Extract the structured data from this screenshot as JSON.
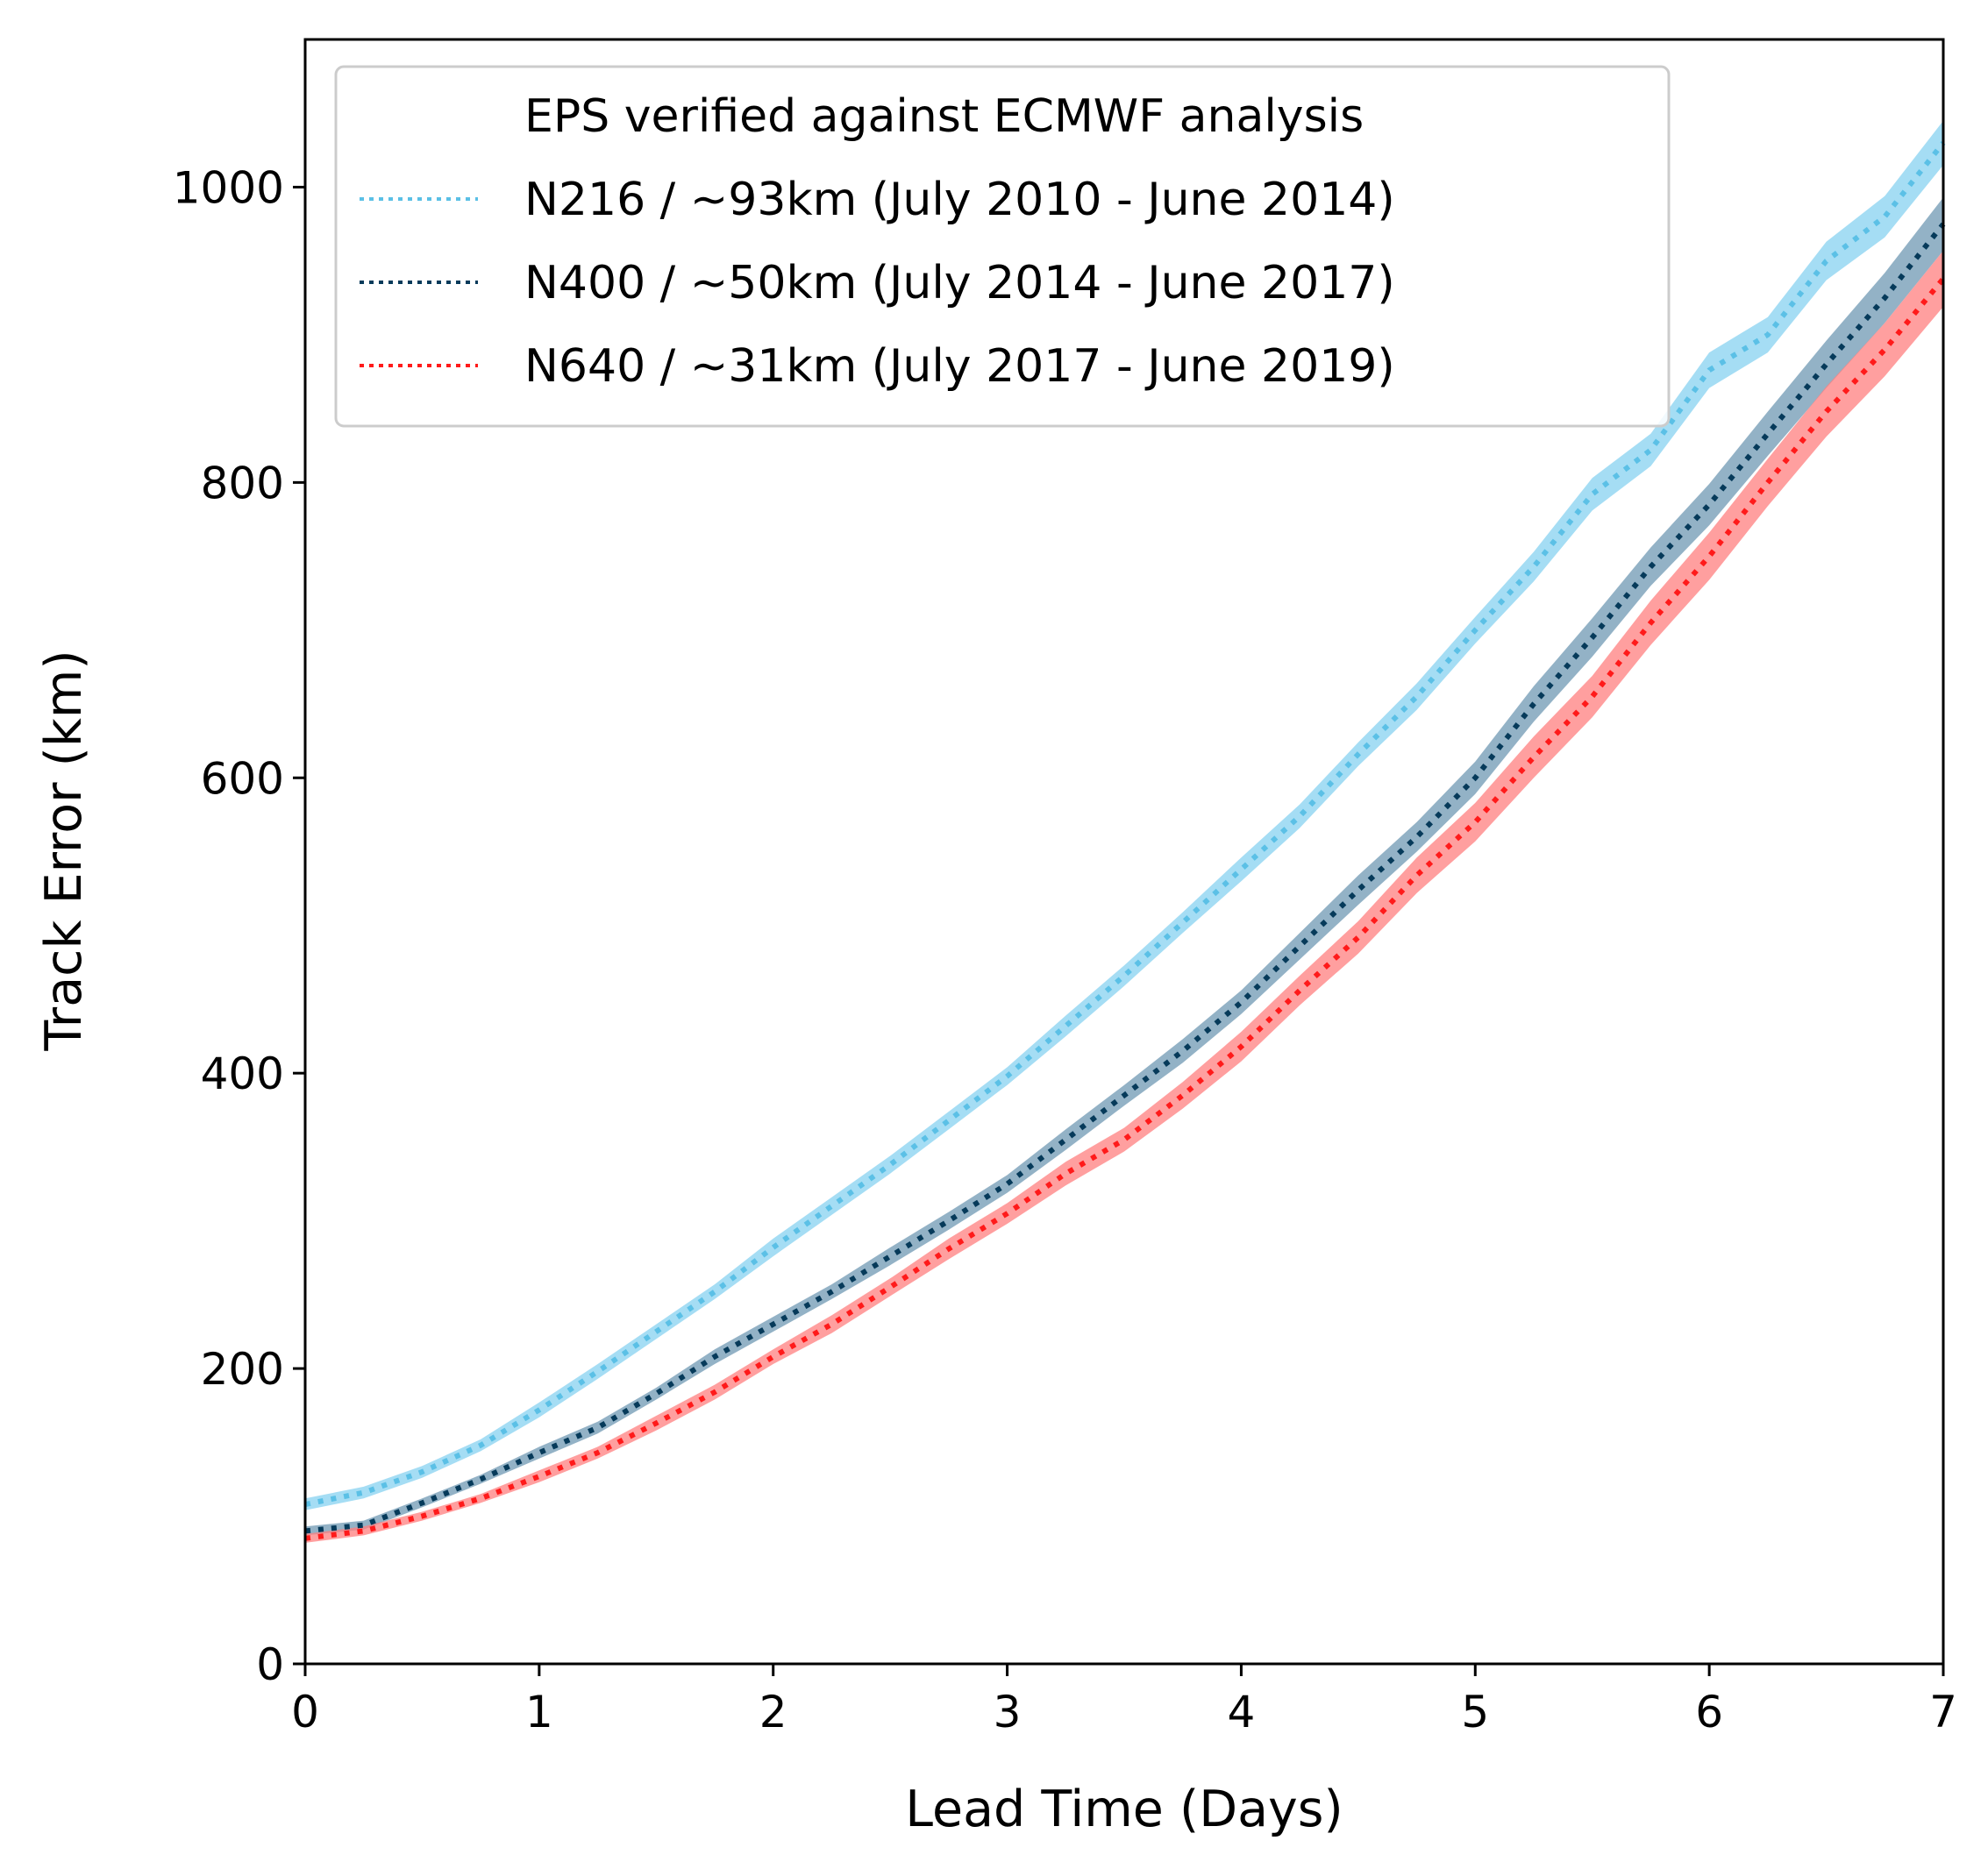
{
  "chart_data": {
    "type": "line",
    "xlabel": "Lead Time (Days)",
    "ylabel": "Track Error (km)",
    "xlim": [
      0,
      7
    ],
    "ylim": [
      0,
      1100
    ],
    "xticks": [
      0,
      1,
      2,
      3,
      4,
      5,
      6,
      7
    ],
    "yticks": [
      0,
      200,
      400,
      600,
      800,
      1000
    ],
    "grid": false,
    "legend_position": "upper-left",
    "legend_title": "EPS verified against ECMWF analysis",
    "x": [
      0,
      0.25,
      0.5,
      0.75,
      1,
      1.25,
      1.5,
      1.75,
      2,
      2.25,
      2.5,
      2.75,
      3,
      3.25,
      3.5,
      3.75,
      4,
      4.25,
      4.5,
      4.75,
      5,
      5.25,
      5.5,
      5.75,
      6,
      6.25,
      6.5,
      6.75,
      7
    ],
    "series": [
      {
        "name": "N216 / ~93km (July 2010 - June 2014)",
        "color": "#5bc0e6",
        "band_color": "#87d2f0",
        "style": "dotted",
        "values": [
          108,
          116,
          130,
          148,
          172,
          198,
          225,
          252,
          282,
          310,
          338,
          368,
          398,
          432,
          466,
          502,
          538,
          574,
          616,
          655,
          700,
          743,
          792,
          822,
          876,
          900,
          950,
          980,
          1030
        ],
        "band_halfwidth": [
          4,
          4,
          4,
          4,
          5,
          5,
          5,
          5,
          6,
          6,
          6,
          6,
          6,
          7,
          7,
          7,
          8,
          8,
          8,
          9,
          9,
          10,
          11,
          11,
          12,
          12,
          13,
          14,
          15
        ]
      },
      {
        "name": "N400 / ~50km (July 2014 - June 2017)",
        "color": "#063a5a",
        "band_color": "#6f98b3",
        "style": "dotted",
        "values": [
          90,
          94,
          109,
          125,
          143,
          160,
          183,
          208,
          230,
          252,
          276,
          300,
          325,
          355,
          385,
          415,
          448,
          486,
          524,
          560,
          600,
          650,
          695,
          743,
          785,
          833,
          880,
          925,
          975
        ],
        "band_halfwidth": [
          3,
          3,
          3,
          3,
          4,
          4,
          4,
          5,
          5,
          5,
          6,
          6,
          6,
          7,
          7,
          8,
          8,
          9,
          10,
          10,
          11,
          12,
          13,
          13,
          14,
          15,
          16,
          17,
          18
        ]
      },
      {
        "name": "N640 / ~31km (July 2017 - June 2019)",
        "color": "#ff1a1a",
        "band_color": "#ff7f7f",
        "style": "dotted",
        "values": [
          85,
          90,
          100,
          112,
          127,
          143,
          163,
          184,
          208,
          230,
          255,
          281,
          305,
          332,
          355,
          385,
          418,
          456,
          492,
          534,
          570,
          614,
          655,
          705,
          750,
          800,
          848,
          890,
          938
        ],
        "band_halfwidth": [
          3,
          3,
          3,
          3,
          4,
          4,
          5,
          5,
          5,
          6,
          6,
          7,
          7,
          8,
          8,
          9,
          10,
          10,
          11,
          12,
          13,
          14,
          14,
          15,
          16,
          16,
          17,
          18,
          19
        ]
      }
    ]
  }
}
